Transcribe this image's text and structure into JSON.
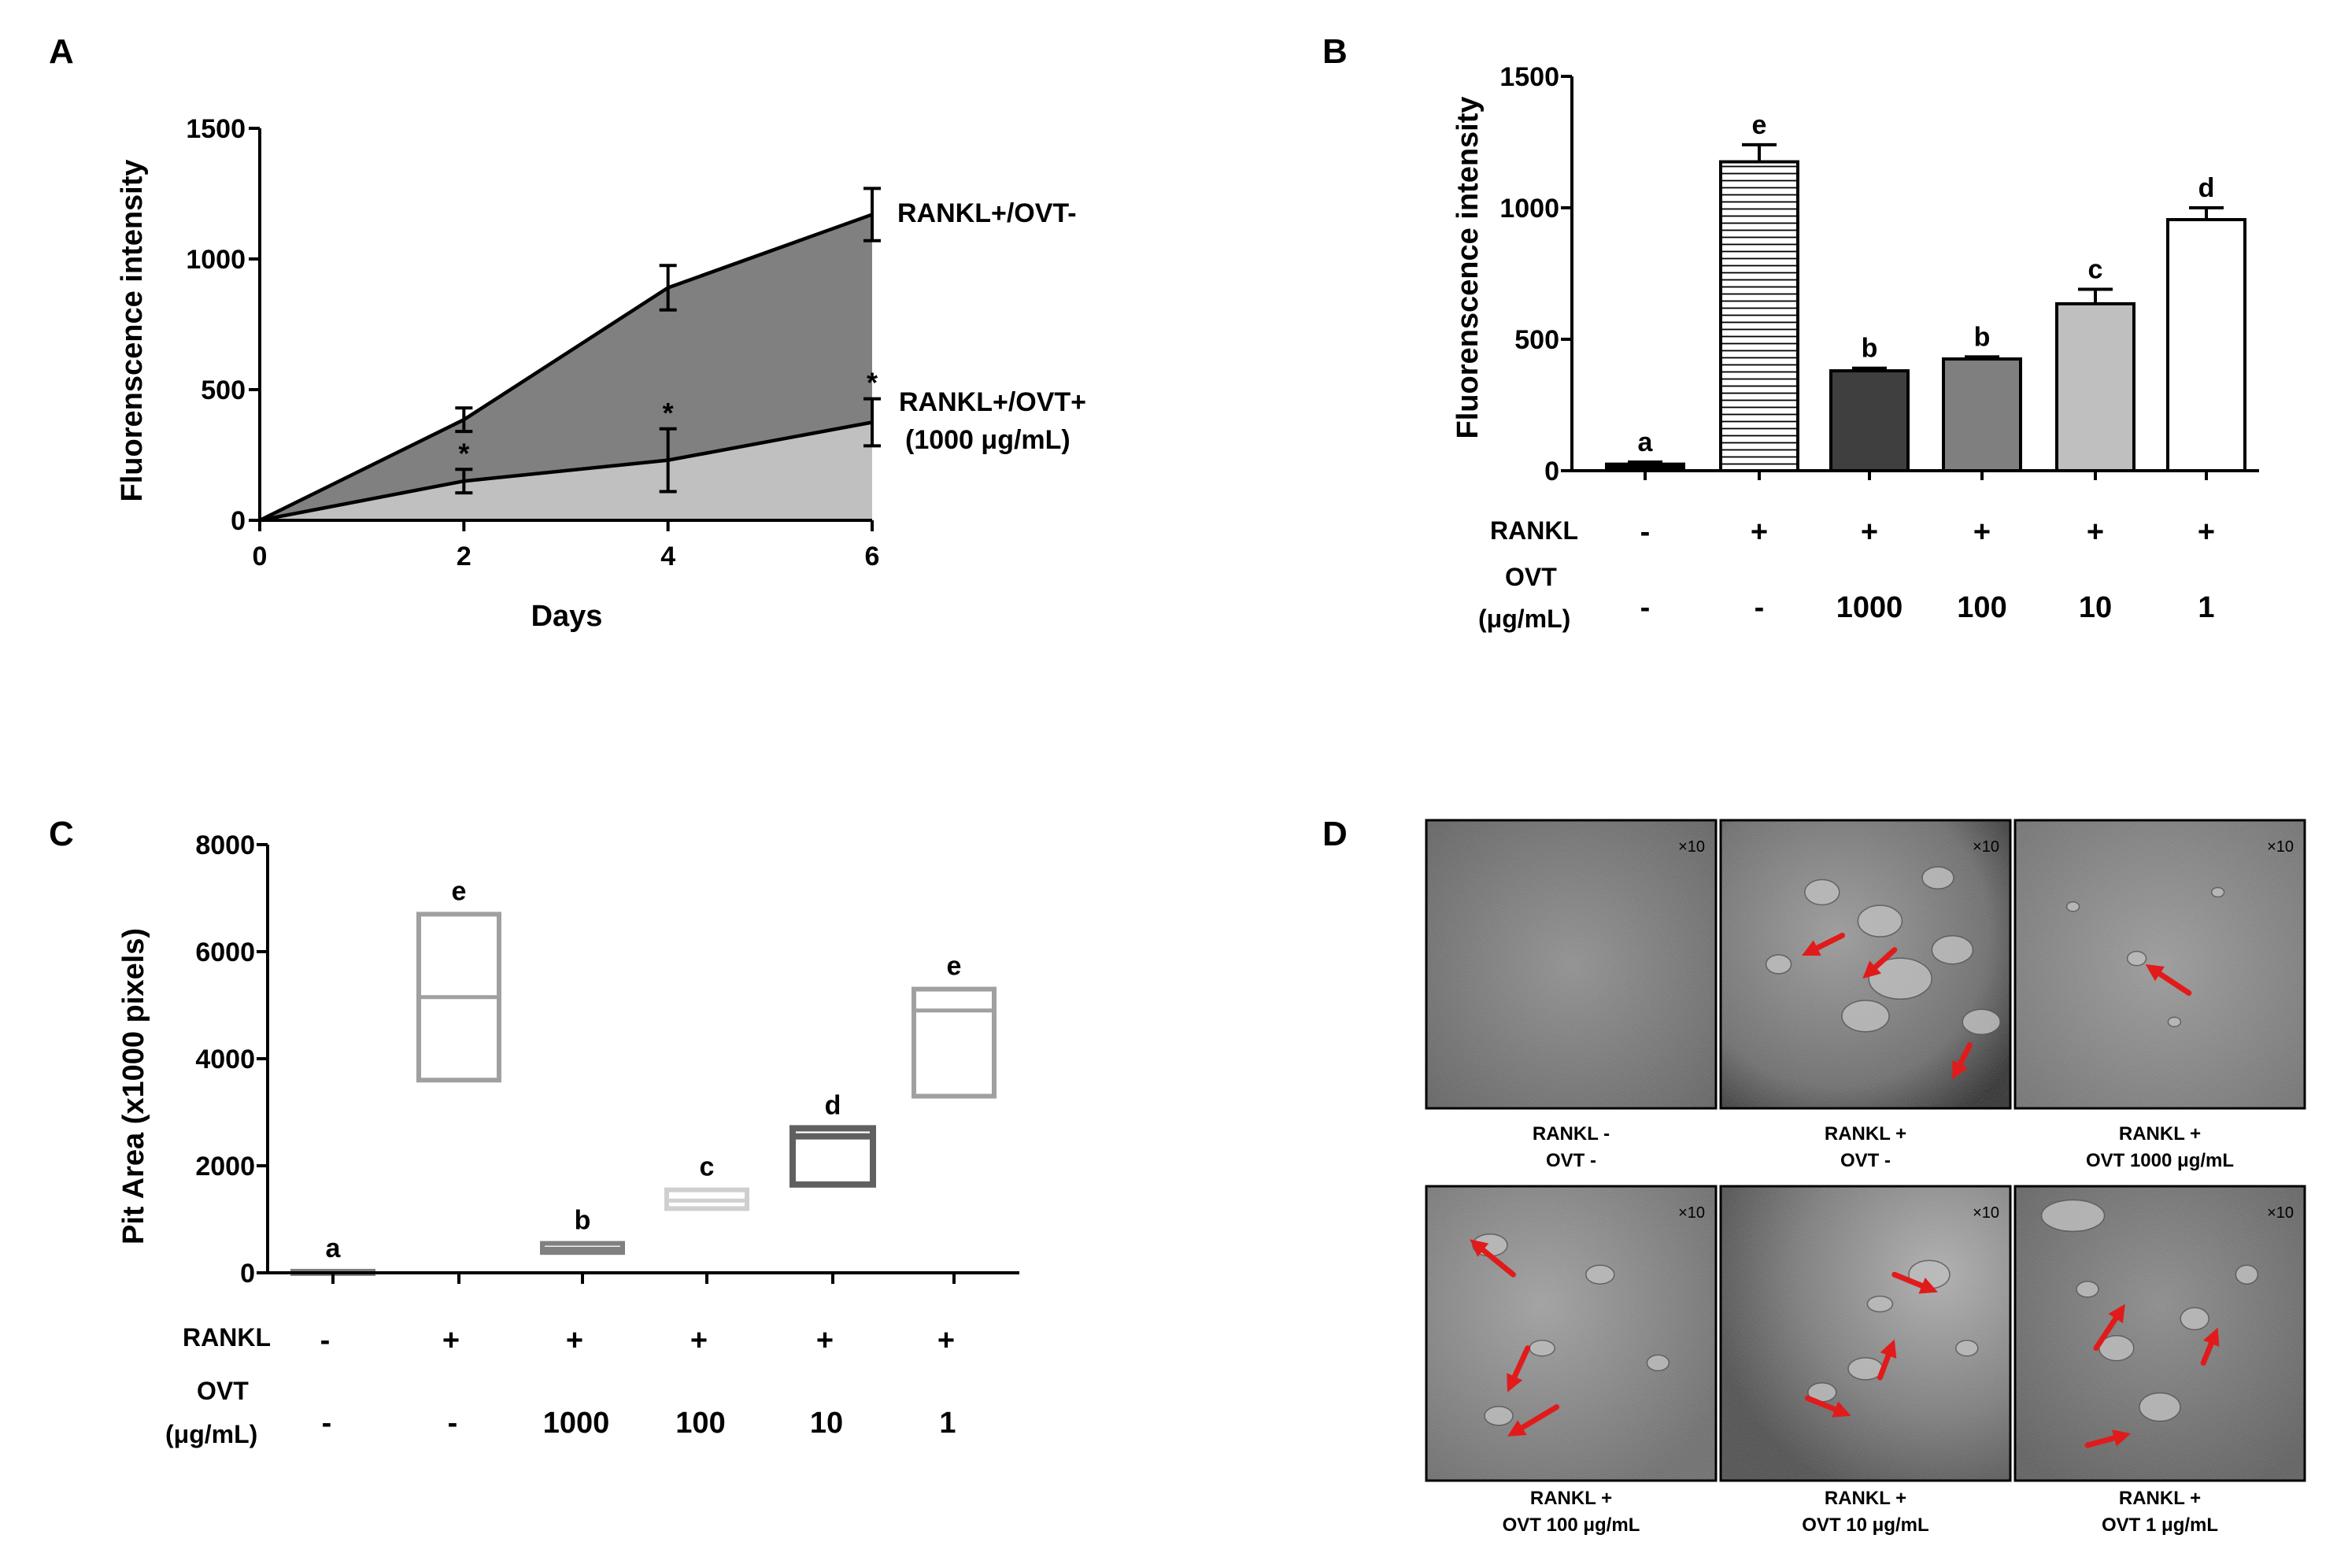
{
  "panel_labels": [
    "A",
    "B",
    "C",
    "D"
  ],
  "chart_data": [
    {
      "panel": "A",
      "type": "area",
      "xlabel": "Days",
      "ylabel": "Fluorenscence intensity",
      "xlim": [
        0,
        6
      ],
      "ylim": [
        0,
        1500
      ],
      "xticks": [
        "0",
        "2",
        "4",
        "6"
      ],
      "yticks": [
        "0",
        "500",
        "1000",
        "1500"
      ],
      "x": [
        0,
        2,
        4,
        6
      ],
      "series": [
        {
          "name": "RANKL+/OVT-",
          "values": [
            0,
            385,
            890,
            1170
          ],
          "errors": [
            0,
            45,
            85,
            100
          ],
          "fill": "#808080"
        },
        {
          "name": "RANKL+/OVT+",
          "values": [
            0,
            150,
            230,
            375
          ],
          "errors": [
            0,
            45,
            120,
            90
          ],
          "fill": "#c0c0c0"
        }
      ],
      "legend_line1": "RANKL+/OVT-",
      "legend_line2": "RANKL+/OVT+",
      "legend_line3": "(1000 μg/mL)",
      "significance": [
        "*",
        "*",
        "*"
      ]
    },
    {
      "panel": "B",
      "type": "bar",
      "ylabel": "Fluorenscence intensity",
      "ylim": [
        0,
        1500
      ],
      "yticks": [
        "0",
        "500",
        "1000",
        "1500"
      ],
      "values": [
        25,
        1175,
        380,
        425,
        635,
        955
      ],
      "errors": [
        8,
        65,
        10,
        8,
        55,
        45
      ],
      "letters": [
        "a",
        "e",
        "b",
        "b",
        "c",
        "d"
      ],
      "fills": [
        "#000000",
        "hatch",
        "#3f3f3f",
        "#7f7f7f",
        "#bfbfbf",
        "#ffffff"
      ],
      "row1_label": "RANKL",
      "row2_label_line1": "OVT",
      "row2_label_line2": "(μg/mL)",
      "rankl": [
        "-",
        "+",
        "+",
        "+",
        "+",
        "+"
      ],
      "ovt": [
        "-",
        "-",
        "1000",
        "100",
        "10",
        "1"
      ]
    },
    {
      "panel": "C",
      "type": "box",
      "ylabel": "Pit Area (x1000 pixels)",
      "ylim": [
        0,
        8000
      ],
      "yticks": [
        "0",
        "2000",
        "4000",
        "6000",
        "8000"
      ],
      "boxes": [
        {
          "low": 0,
          "median": 0,
          "high": 30,
          "color": "#808080"
        },
        {
          "low": 3600,
          "median": 5150,
          "high": 6700,
          "color": "#a0a0a0"
        },
        {
          "low": 380,
          "median": 450,
          "high": 550,
          "color": "#808080"
        },
        {
          "low": 1200,
          "median": 1350,
          "high": 1550,
          "color": "#cfcfcf"
        },
        {
          "low": 1650,
          "median": 2550,
          "high": 2700,
          "color": "#606060"
        },
        {
          "low": 3300,
          "median": 4900,
          "high": 5300,
          "color": "#a0a0a0"
        }
      ],
      "letters": [
        "a",
        "e",
        "b",
        "c",
        "d",
        "e"
      ],
      "row1_label": "RANKL",
      "row2_label_line1": "OVT",
      "row2_label_line2": "(μg/mL)",
      "rankl": [
        "-",
        "+",
        "+",
        "+",
        "+",
        "+"
      ],
      "ovt": [
        "-",
        "-",
        "1000",
        "100",
        "10",
        "1"
      ]
    }
  ],
  "panelD": {
    "magnification": "×10",
    "images": [
      {
        "cap1": "RANKL -",
        "cap2": "OVT -"
      },
      {
        "cap1": "RANKL +",
        "cap2": "OVT -"
      },
      {
        "cap1": "RANKL +",
        "cap2": "OVT 1000 μg/mL"
      },
      {
        "cap1": "RANKL +",
        "cap2": "OVT 100 μg/mL"
      },
      {
        "cap1": "RANKL +",
        "cap2": "OVT 10 μg/mL"
      },
      {
        "cap1": "RANKL +",
        "cap2": "OVT 1 μg/mL"
      }
    ],
    "arrow_color": "#e11b1b"
  }
}
